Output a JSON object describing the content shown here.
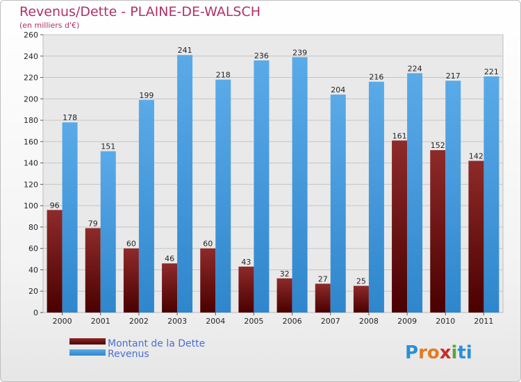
{
  "chart_data": {
    "type": "bar",
    "title": "Revenus/Dette - PLAINE-DE-WALSCH",
    "subtitle": "(en milliers d'€)",
    "categories": [
      "2000",
      "2001",
      "2002",
      "2003",
      "2004",
      "2005",
      "2006",
      "2007",
      "2008",
      "2009",
      "2010",
      "2011"
    ],
    "series": [
      {
        "name": "Montant de la Dette",
        "color": "#7a1414",
        "values": [
          96,
          79,
          60,
          46,
          60,
          43,
          32,
          27,
          25,
          161,
          152,
          142
        ]
      },
      {
        "name": "Revenus",
        "color": "#4a9de0",
        "values": [
          178,
          151,
          199,
          241,
          218,
          236,
          239,
          204,
          216,
          224,
          217,
          221
        ]
      }
    ],
    "ylim": [
      0,
      260
    ],
    "ytick_step": 20,
    "grid": true,
    "legend_position": "bottom-left"
  },
  "logo": {
    "text": "Proxiti",
    "letter_colors": [
      "#2a8fd8",
      "#e67a1e",
      "#e67a1e",
      "#cc2a2a",
      "#57a63a",
      "#2a8fd8",
      "#2a8fd8"
    ]
  }
}
